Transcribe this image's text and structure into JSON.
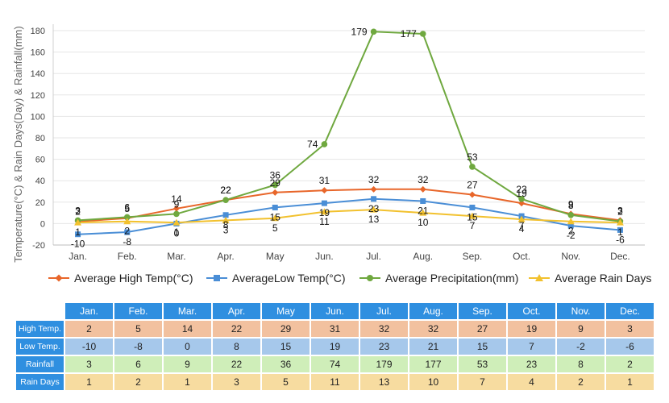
{
  "chart_data": {
    "type": "line",
    "ylabel": "Temperature(°C) & Rain Days(Day) & Rainfall(mm)",
    "xlabel": "",
    "categories": [
      "Jan.",
      "Feb.",
      "Mar.",
      "Apr.",
      "May",
      "Jun.",
      "Jul.",
      "Aug.",
      "Sep.",
      "Oct.",
      "Nov.",
      "Dec."
    ],
    "ylim": [
      -20,
      180
    ],
    "yticks": [
      -20,
      0,
      20,
      40,
      60,
      80,
      100,
      120,
      140,
      160,
      180
    ],
    "grid": true,
    "legend_position": "bottom",
    "series": [
      {
        "name": "Average High Temp(°C)",
        "color": "#e8662a",
        "marker": "diamond",
        "values": [
          2,
          5,
          14,
          22,
          29,
          31,
          32,
          32,
          27,
          19,
          9,
          3
        ]
      },
      {
        "name": "AverageLow Temp(°C)",
        "color": "#4a8ed6",
        "marker": "square",
        "values": [
          -10,
          -8,
          0,
          8,
          15,
          19,
          23,
          21,
          15,
          7,
          -2,
          -6
        ]
      },
      {
        "name": "Average Precipitation(mm)",
        "color": "#6fa83f",
        "marker": "circle",
        "values": [
          3,
          6,
          9,
          22,
          36,
          74,
          179,
          177,
          53,
          23,
          8,
          2
        ]
      },
      {
        "name": "Average Rain Days",
        "color": "#f2c12e",
        "marker": "triangle",
        "values": [
          1,
          2,
          1,
          3,
          5,
          11,
          13,
          10,
          7,
          4,
          2,
          1
        ]
      }
    ]
  },
  "table": {
    "months": [
      "Jan.",
      "Feb.",
      "Mar.",
      "Apr.",
      "May",
      "Jun.",
      "Jul.",
      "Aug.",
      "Sep.",
      "Oct.",
      "Nov.",
      "Dec."
    ],
    "rows": [
      {
        "label": "High Temp.",
        "values": [
          "2",
          "5",
          "14",
          "22",
          "29",
          "31",
          "32",
          "32",
          "27",
          "19",
          "9",
          "3"
        ]
      },
      {
        "label": "Low Temp.",
        "values": [
          "-10",
          "-8",
          "0",
          "8",
          "15",
          "19",
          "23",
          "21",
          "15",
          "7",
          "-2",
          "-6"
        ]
      },
      {
        "label": "Rainfall",
        "values": [
          "3",
          "6",
          "9",
          "22",
          "36",
          "74",
          "179",
          "177",
          "53",
          "23",
          "8",
          "2"
        ]
      },
      {
        "label": "Rain Days",
        "values": [
          "1",
          "2",
          "1",
          "3",
          "5",
          "11",
          "13",
          "10",
          "7",
          "4",
          "2",
          "1"
        ]
      }
    ]
  }
}
